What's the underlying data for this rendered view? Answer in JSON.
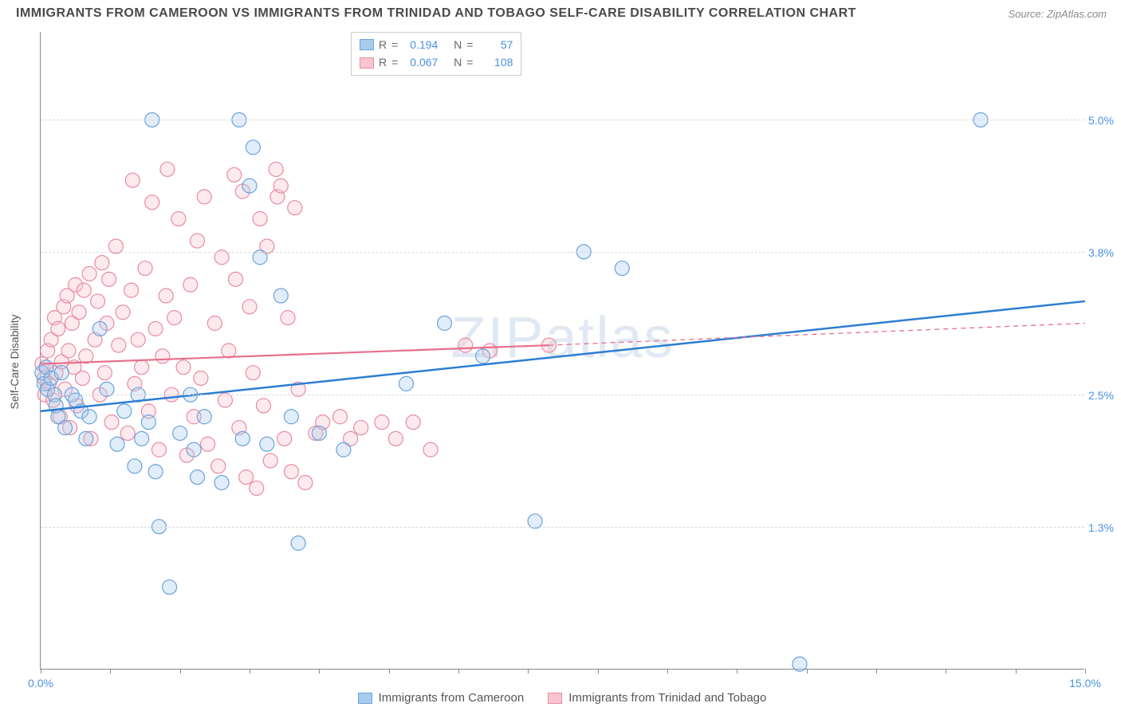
{
  "title": "IMMIGRANTS FROM CAMEROON VS IMMIGRANTS FROM TRINIDAD AND TOBAGO SELF-CARE DISABILITY CORRELATION CHART",
  "source_label": "Source: ZipAtlas.com",
  "watermark_text": "ZIPatlas",
  "y_axis_title": "Self-Care Disability",
  "chart": {
    "type": "scatter",
    "xlim": [
      0.0,
      15.0
    ],
    "ylim": [
      0.0,
      5.8
    ],
    "x_ticks_minor": [
      0.0,
      1.0,
      2.0,
      3.0,
      4.0,
      5.0,
      6.0,
      7.0,
      8.0,
      9.0,
      10.0,
      11.0,
      12.0,
      13.0,
      14.0,
      15.0
    ],
    "x_tick_labels": [
      {
        "x": 0.0,
        "label": "0.0%"
      },
      {
        "x": 15.0,
        "label": "15.0%"
      }
    ],
    "y_gridlines": [
      {
        "y": 1.3,
        "label": "1.3%"
      },
      {
        "y": 2.5,
        "label": "2.5%"
      },
      {
        "y": 3.8,
        "label": "3.8%"
      },
      {
        "y": 5.0,
        "label": "5.0%"
      }
    ],
    "background_color": "#ffffff",
    "grid_color": "#d8d8d8",
    "axis_color": "#888888",
    "tick_label_color": "#4a90e2",
    "marker_radius": 9,
    "marker_fill_opacity": 0.35,
    "marker_stroke_width": 1.2,
    "series": [
      {
        "name": "Immigrants from Cameroon",
        "color_fill": "#a9cbec",
        "color_stroke": "#6aa3de",
        "line_color": "#2d7dd2",
        "line_width": 2.5,
        "r_value": "0.194",
        "n_value": "57",
        "regression": {
          "x0": 0,
          "y0": 2.35,
          "x1": 15,
          "y1": 3.35
        },
        "points": [
          [
            0.02,
            2.7
          ],
          [
            0.05,
            2.6
          ],
          [
            0.08,
            2.75
          ],
          [
            0.1,
            2.55
          ],
          [
            0.15,
            2.65
          ],
          [
            0.2,
            2.5
          ],
          [
            0.22,
            2.4
          ],
          [
            0.25,
            2.3
          ],
          [
            0.3,
            2.7
          ],
          [
            0.35,
            2.2
          ],
          [
            0.45,
            2.5
          ],
          [
            0.5,
            2.45
          ],
          [
            0.58,
            2.35
          ],
          [
            0.65,
            2.1
          ],
          [
            0.7,
            2.3
          ],
          [
            0.85,
            3.1
          ],
          [
            0.95,
            2.55
          ],
          [
            1.1,
            2.05
          ],
          [
            1.2,
            2.35
          ],
          [
            1.35,
            1.85
          ],
          [
            1.4,
            2.5
          ],
          [
            1.45,
            2.1
          ],
          [
            1.55,
            2.25
          ],
          [
            1.6,
            5.0
          ],
          [
            1.65,
            1.8
          ],
          [
            1.7,
            1.3
          ],
          [
            1.85,
            0.75
          ],
          [
            2.0,
            2.15
          ],
          [
            2.15,
            2.5
          ],
          [
            2.2,
            2.0
          ],
          [
            2.25,
            1.75
          ],
          [
            2.35,
            2.3
          ],
          [
            2.6,
            1.7
          ],
          [
            2.85,
            5.0
          ],
          [
            2.9,
            2.1
          ],
          [
            3.0,
            4.4
          ],
          [
            3.05,
            4.75
          ],
          [
            3.15,
            3.75
          ],
          [
            3.25,
            2.05
          ],
          [
            3.45,
            3.4
          ],
          [
            3.6,
            2.3
          ],
          [
            3.7,
            1.15
          ],
          [
            4.0,
            2.15
          ],
          [
            4.35,
            2.0
          ],
          [
            5.25,
            2.6
          ],
          [
            5.8,
            3.15
          ],
          [
            6.35,
            2.85
          ],
          [
            7.1,
            1.35
          ],
          [
            7.8,
            3.8
          ],
          [
            8.35,
            3.65
          ],
          [
            10.9,
            0.05
          ],
          [
            13.5,
            5.0
          ]
        ]
      },
      {
        "name": "Immigrants from Trinidad and Tobago",
        "color_fill": "#f7c4cf",
        "color_stroke": "#e98ba2",
        "line_color": "#e76f8c",
        "line_width": 2.2,
        "r_value": "0.067",
        "n_value": "108",
        "regression": {
          "x0": 0,
          "y0": 2.78,
          "x1": 7.3,
          "y1": 2.95
        },
        "regression_dashed": {
          "x0": 7.3,
          "y0": 2.95,
          "x1": 15,
          "y1": 3.15
        },
        "points": [
          [
            0.02,
            2.78
          ],
          [
            0.05,
            2.65
          ],
          [
            0.06,
            2.5
          ],
          [
            0.08,
            2.75
          ],
          [
            0.1,
            2.9
          ],
          [
            0.12,
            2.6
          ],
          [
            0.15,
            3.0
          ],
          [
            0.18,
            2.45
          ],
          [
            0.2,
            3.2
          ],
          [
            0.22,
            2.7
          ],
          [
            0.25,
            3.1
          ],
          [
            0.28,
            2.3
          ],
          [
            0.3,
            2.8
          ],
          [
            0.33,
            3.3
          ],
          [
            0.35,
            2.55
          ],
          [
            0.38,
            3.4
          ],
          [
            0.4,
            2.9
          ],
          [
            0.42,
            2.2
          ],
          [
            0.45,
            3.15
          ],
          [
            0.48,
            2.75
          ],
          [
            0.5,
            3.5
          ],
          [
            0.52,
            2.4
          ],
          [
            0.55,
            3.25
          ],
          [
            0.6,
            2.65
          ],
          [
            0.62,
            3.45
          ],
          [
            0.65,
            2.85
          ],
          [
            0.7,
            3.6
          ],
          [
            0.72,
            2.1
          ],
          [
            0.78,
            3.0
          ],
          [
            0.82,
            3.35
          ],
          [
            0.85,
            2.5
          ],
          [
            0.88,
            3.7
          ],
          [
            0.92,
            2.7
          ],
          [
            0.95,
            3.15
          ],
          [
            0.98,
            3.55
          ],
          [
            1.02,
            2.25
          ],
          [
            1.08,
            3.85
          ],
          [
            1.12,
            2.95
          ],
          [
            1.18,
            3.25
          ],
          [
            1.25,
            2.15
          ],
          [
            1.3,
            3.45
          ],
          [
            1.32,
            4.45
          ],
          [
            1.35,
            2.6
          ],
          [
            1.4,
            3.0
          ],
          [
            1.45,
            2.75
          ],
          [
            1.5,
            3.65
          ],
          [
            1.55,
            2.35
          ],
          [
            1.6,
            4.25
          ],
          [
            1.65,
            3.1
          ],
          [
            1.7,
            2.0
          ],
          [
            1.75,
            2.85
          ],
          [
            1.8,
            3.4
          ],
          [
            1.82,
            4.55
          ],
          [
            1.88,
            2.5
          ],
          [
            1.92,
            3.2
          ],
          [
            1.98,
            4.1
          ],
          [
            2.05,
            2.75
          ],
          [
            2.1,
            1.95
          ],
          [
            2.15,
            3.5
          ],
          [
            2.2,
            2.3
          ],
          [
            2.25,
            3.9
          ],
          [
            2.3,
            2.65
          ],
          [
            2.35,
            4.3
          ],
          [
            2.4,
            2.05
          ],
          [
            2.5,
            3.15
          ],
          [
            2.55,
            1.85
          ],
          [
            2.6,
            3.75
          ],
          [
            2.65,
            2.45
          ],
          [
            2.7,
            2.9
          ],
          [
            2.78,
            4.5
          ],
          [
            2.8,
            3.55
          ],
          [
            2.85,
            2.2
          ],
          [
            2.9,
            4.35
          ],
          [
            2.95,
            1.75
          ],
          [
            3.0,
            3.3
          ],
          [
            3.05,
            2.7
          ],
          [
            3.1,
            1.65
          ],
          [
            3.15,
            4.1
          ],
          [
            3.2,
            2.4
          ],
          [
            3.25,
            3.85
          ],
          [
            3.3,
            1.9
          ],
          [
            3.38,
            4.55
          ],
          [
            3.4,
            4.3
          ],
          [
            3.45,
            4.4
          ],
          [
            3.5,
            2.1
          ],
          [
            3.55,
            3.2
          ],
          [
            3.6,
            1.8
          ],
          [
            3.65,
            4.2
          ],
          [
            3.7,
            2.55
          ],
          [
            3.8,
            1.7
          ],
          [
            3.95,
            2.15
          ],
          [
            4.05,
            2.25
          ],
          [
            4.3,
            2.3
          ],
          [
            4.45,
            2.1
          ],
          [
            4.6,
            2.2
          ],
          [
            4.9,
            2.25
          ],
          [
            5.1,
            2.1
          ],
          [
            5.35,
            2.25
          ],
          [
            5.6,
            2.0
          ],
          [
            6.1,
            2.95
          ],
          [
            6.45,
            2.9
          ],
          [
            7.3,
            2.95
          ]
        ]
      }
    ]
  },
  "legend_top": {
    "r_label": "R",
    "n_label": "N",
    "equals": "="
  },
  "legend_bottom": [
    {
      "label": "Immigrants from Cameroon",
      "swatch_fill": "#a9cbec",
      "swatch_stroke": "#6aa3de"
    },
    {
      "label": "Immigrants from Trinidad and Tobago",
      "swatch_fill": "#f7c4cf",
      "swatch_stroke": "#e98ba2"
    }
  ]
}
